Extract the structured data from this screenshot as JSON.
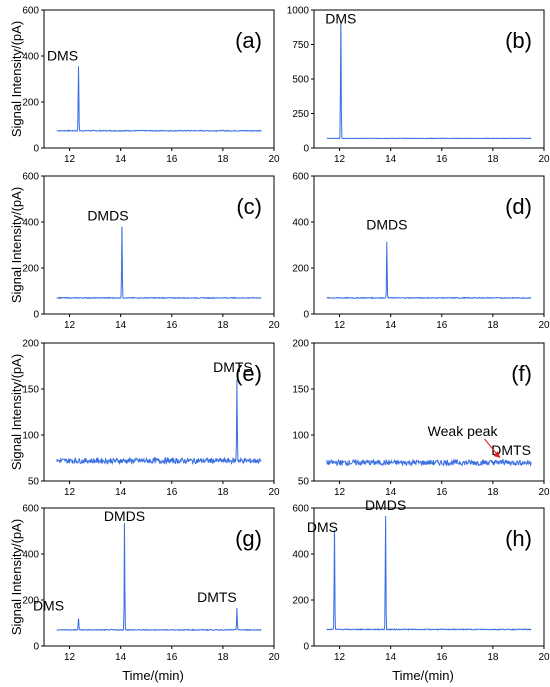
{
  "x_axis_label": "Time/(min)",
  "y_axis_label": "Signal Intensity/(pA)",
  "colors": {
    "trace": "#3a6fe0",
    "arrow": "#e02020"
  },
  "chart_data": [
    {
      "type": "line",
      "panel": "(a)",
      "xlim": [
        11,
        20
      ],
      "ylim": [
        0,
        600
      ],
      "xticks": [
        "12",
        "14",
        "16",
        "18",
        "20"
      ],
      "yticks": [
        "0",
        "200",
        "400",
        "600"
      ],
      "baseline": 75,
      "noise": 2,
      "peaks": [
        {
          "x": 12.35,
          "y": 355,
          "label": "DMS"
        }
      ]
    },
    {
      "type": "line",
      "panel": "(b)",
      "xlim": [
        11,
        20
      ],
      "ylim": [
        0,
        1000
      ],
      "xticks": [
        "12",
        "14",
        "16",
        "18",
        "20"
      ],
      "yticks": [
        "0",
        "250",
        "500",
        "750",
        "1000"
      ],
      "baseline": 70,
      "noise": 2,
      "peaks": [
        {
          "x": 12.05,
          "y": 915,
          "label": "DMS"
        }
      ]
    },
    {
      "type": "line",
      "panel": "(c)",
      "xlim": [
        11,
        20
      ],
      "ylim": [
        0,
        600
      ],
      "xticks": [
        "12",
        "14",
        "16",
        "18",
        "20"
      ],
      "yticks": [
        "0",
        "200",
        "400",
        "600"
      ],
      "baseline": 70,
      "noise": 2,
      "peaks": [
        {
          "x": 14.05,
          "y": 380,
          "label": "DMDS"
        }
      ]
    },
    {
      "type": "line",
      "panel": "(d)",
      "xlim": [
        11,
        20
      ],
      "ylim": [
        0,
        600
      ],
      "xticks": [
        "12",
        "14",
        "16",
        "18",
        "20"
      ],
      "yticks": [
        "0",
        "200",
        "400",
        "600"
      ],
      "baseline": 70,
      "noise": 2,
      "peaks": [
        {
          "x": 13.85,
          "y": 315,
          "label": "DMDS"
        }
      ]
    },
    {
      "type": "line",
      "panel": "(e)",
      "xlim": [
        11,
        20
      ],
      "ylim": [
        50,
        200
      ],
      "xticks": [
        "12",
        "14",
        "16",
        "18",
        "20"
      ],
      "yticks": [
        "50",
        "100",
        "150",
        "200"
      ],
      "baseline": 72,
      "noise": 3,
      "peaks": [
        {
          "x": 18.55,
          "y": 160,
          "label": "DMTS"
        }
      ]
    },
    {
      "type": "line",
      "panel": "(f)",
      "xlim": [
        11,
        20
      ],
      "ylim": [
        50,
        200
      ],
      "xticks": [
        "12",
        "14",
        "16",
        "18",
        "20"
      ],
      "yticks": [
        "50",
        "100",
        "150",
        "200"
      ],
      "baseline": 70,
      "noise": 3,
      "peaks": [
        {
          "x": 18.4,
          "y": 74,
          "label": "DMTS"
        }
      ],
      "annotation": {
        "text": "Weak peak",
        "x": 18.3,
        "y": 75
      }
    },
    {
      "type": "line",
      "panel": "(g)",
      "xlim": [
        11,
        20
      ],
      "ylim": [
        0,
        600
      ],
      "xticks": [
        "12",
        "14",
        "16",
        "18",
        "20"
      ],
      "yticks": [
        "0",
        "200",
        "400",
        "600"
      ],
      "baseline": 70,
      "noise": 2,
      "peaks": [
        {
          "x": 12.35,
          "y": 120,
          "label": "DMS"
        },
        {
          "x": 14.15,
          "y": 535,
          "label": "DMDS"
        },
        {
          "x": 18.55,
          "y": 165,
          "label": "DMTS"
        }
      ]
    },
    {
      "type": "line",
      "panel": "(h)",
      "xlim": [
        11,
        20
      ],
      "ylim": [
        0,
        600
      ],
      "xticks": [
        "12",
        "14",
        "16",
        "18",
        "20"
      ],
      "yticks": [
        "0",
        "200",
        "400",
        "600"
      ],
      "baseline": 72,
      "noise": 2,
      "peaks": [
        {
          "x": 11.8,
          "y": 505,
          "label": "DMS"
        },
        {
          "x": 13.8,
          "y": 565,
          "label": "DMDS"
        }
      ]
    }
  ]
}
